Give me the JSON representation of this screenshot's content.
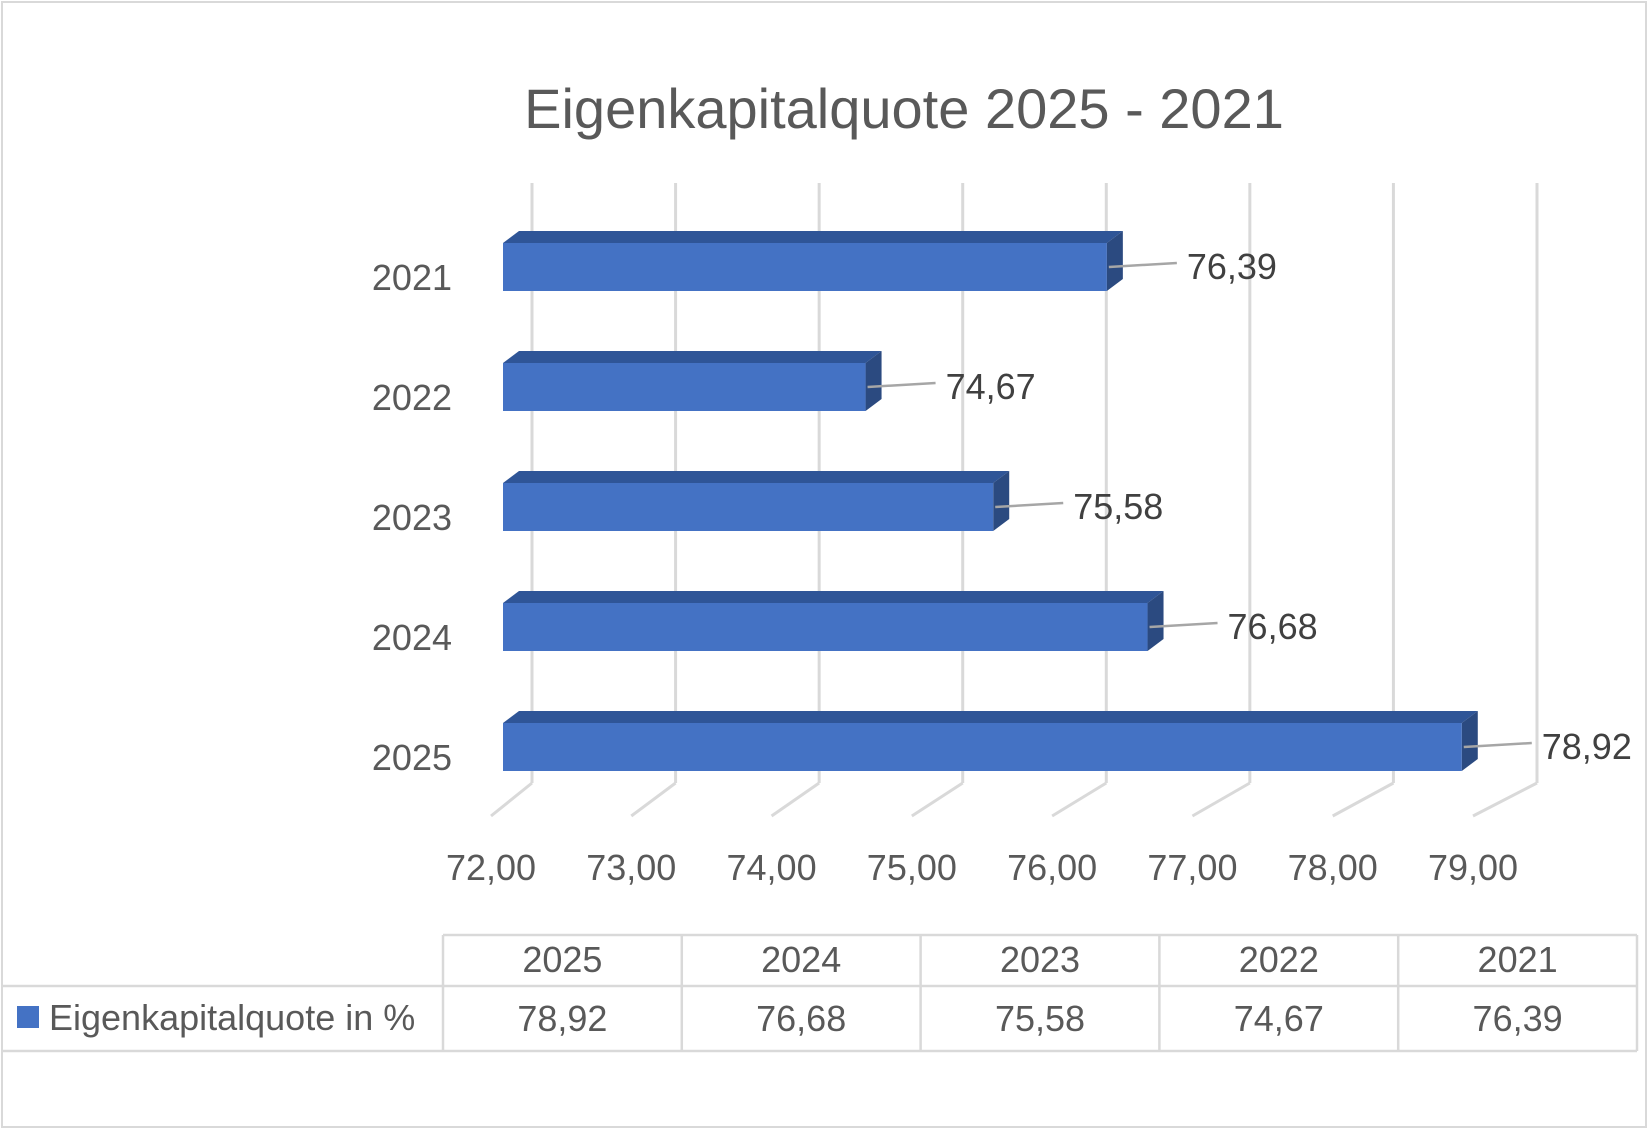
{
  "colors": {
    "bar_front": "#4472c4",
    "bar_top": "#2f5597",
    "bar_side": "#2b4a80",
    "grid": "#d9d9d9",
    "text": "#595959"
  },
  "chart_data": {
    "type": "bar",
    "orientation": "horizontal",
    "style": "3d-clustered-bar",
    "title": "Eigenkapitalquote 2025 - 2021",
    "categories": [
      "2021",
      "2022",
      "2023",
      "2024",
      "2025"
    ],
    "series": [
      {
        "name": "Eigenkapitalquote in %",
        "values": [
          76.39,
          74.67,
          75.58,
          76.68,
          78.92
        ],
        "labels": [
          "76,39",
          "74,67",
          "75,58",
          "76,68",
          "78,92"
        ]
      }
    ],
    "xlim": [
      72,
      79
    ],
    "xticks": [
      "72,00",
      "73,00",
      "74,00",
      "75,00",
      "76,00",
      "77,00",
      "78,00",
      "79,00"
    ],
    "grid": true,
    "legend": "data-table",
    "data_table": {
      "headers": [
        "2025",
        "2024",
        "2023",
        "2022",
        "2021"
      ],
      "row_label": "Eigenkapitalquote in %",
      "values": [
        "78,92",
        "76,68",
        "75,58",
        "74,67",
        "76,39"
      ]
    }
  }
}
